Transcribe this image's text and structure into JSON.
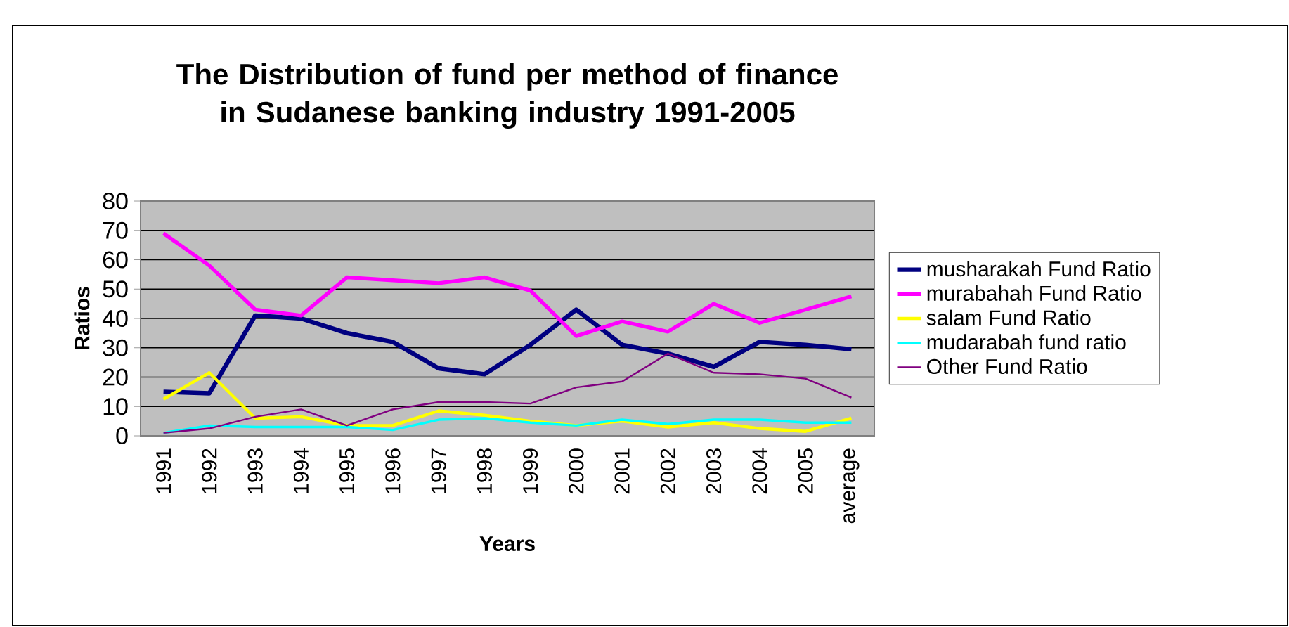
{
  "chart_data": {
    "type": "line",
    "title": "The Distribution of fund per method of finance in Sudanese banking industry 1991-2005",
    "xlabel": "Years",
    "ylabel": "Ratios",
    "categories": [
      "1991",
      "1992",
      "1993",
      "1994",
      "1995",
      "1996",
      "1997",
      "1998",
      "1999",
      "2000",
      "2001",
      "2002",
      "2003",
      "2004",
      "2005",
      "average"
    ],
    "series": [
      {
        "name": "musharakah Fund Ratio",
        "color": "#000080",
        "values": [
          15,
          14.5,
          41,
          40,
          35,
          32,
          23,
          21,
          31,
          43,
          31,
          28,
          23.5,
          32,
          31,
          29.5
        ]
      },
      {
        "name": "murabahah Fund Ratio",
        "color": "#ff00ff",
        "values": [
          69,
          58,
          43,
          41,
          54,
          53,
          52,
          54,
          49.5,
          34,
          39,
          35.5,
          45,
          38.5,
          43,
          47.5
        ]
      },
      {
        "name": "salam Fund Ratio",
        "color": "#ffff00",
        "values": [
          12.5,
          21.5,
          6,
          6.5,
          3.5,
          3.5,
          8.5,
          7,
          5,
          3.5,
          5,
          3,
          4.5,
          2.5,
          1.5,
          6
        ]
      },
      {
        "name": "mudarabah fund ratio",
        "color": "#00ffff",
        "values": [
          1,
          3.5,
          3,
          3,
          3,
          2,
          5.5,
          6,
          4.5,
          3.5,
          5.5,
          4,
          5.5,
          5.5,
          4.5,
          4.5
        ]
      },
      {
        "name": "Other Fund Ratio",
        "color": "#800080",
        "values": [
          1,
          2.5,
          6.5,
          9,
          3.5,
          9,
          11.5,
          11.5,
          11,
          16.5,
          18.5,
          28,
          21.5,
          21,
          19.5,
          13
        ]
      }
    ],
    "ylim": [
      0,
      80
    ],
    "yticks": [
      0,
      10,
      20,
      30,
      40,
      50,
      60,
      70,
      80
    ],
    "grid": "y",
    "legend": "right",
    "marker": "none",
    "line_style": "solid"
  }
}
